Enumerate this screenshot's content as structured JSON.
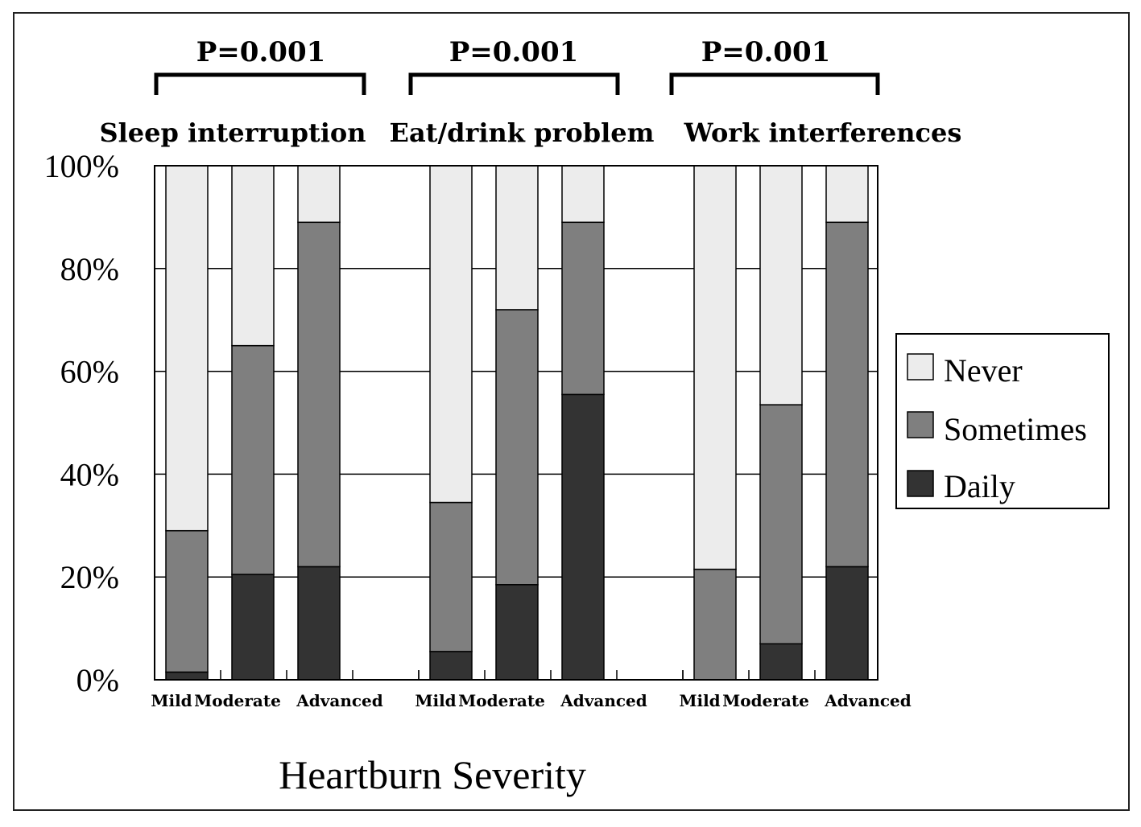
{
  "chart_data": {
    "type": "bar",
    "stacked": true,
    "xlabel": "Heartburn Severity",
    "ylabel": "",
    "ylim": [
      0,
      100
    ],
    "yticks": [
      "0%",
      "20%",
      "40%",
      "60%",
      "80%",
      "100%"
    ],
    "grid": true,
    "legend_position": "right",
    "categories": [
      "Mild",
      "Moderate",
      "Advanced"
    ],
    "series_colors": {
      "Daily": "#333333",
      "Sometimes": "#7f7f7f",
      "Never": "#ececec"
    },
    "legend": [
      "Never",
      "Sometimes",
      "Daily"
    ],
    "groups": [
      {
        "title": "Sleep interruption",
        "p_value": "P=0.001",
        "series": [
          {
            "name": "Daily",
            "values": [
              1.5,
              20.5,
              22
            ]
          },
          {
            "name": "Sometimes",
            "values": [
              27.5,
              44.5,
              67
            ]
          },
          {
            "name": "Never",
            "values": [
              71,
              35,
              11
            ]
          }
        ]
      },
      {
        "title": "Eat/drink problem",
        "p_value": "P=0.001",
        "series": [
          {
            "name": "Daily",
            "values": [
              5.5,
              18.5,
              55.5
            ]
          },
          {
            "name": "Sometimes",
            "values": [
              29,
              53.5,
              33.5
            ]
          },
          {
            "name": "Never",
            "values": [
              65.5,
              28,
              11
            ]
          }
        ]
      },
      {
        "title": "Work interferences",
        "p_value": "P=0.001",
        "series": [
          {
            "name": "Daily",
            "values": [
              0,
              7,
              22
            ]
          },
          {
            "name": "Sometimes",
            "values": [
              21.5,
              46.5,
              67
            ]
          },
          {
            "name": "Never",
            "values": [
              78.5,
              46.5,
              11
            ]
          }
        ]
      }
    ]
  }
}
